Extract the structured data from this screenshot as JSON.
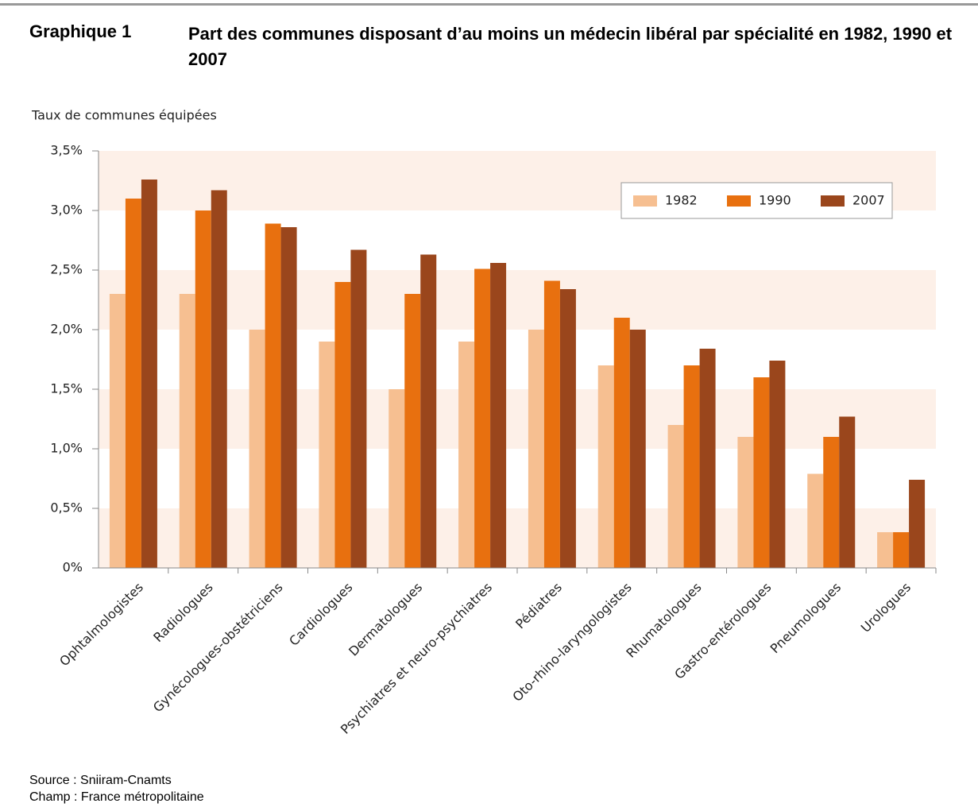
{
  "header": "Graphique 1",
  "chart_data": {
    "type": "bar",
    "title": "Part des communes disposant d’au moins un médecin libéral par spécialité en 1982, 1990 et 2007",
    "y_label": "Taux de communes équipées",
    "categories": [
      "Ophtalmologistes",
      "Radiologues",
      "Gynécologues-obstétriciens",
      "Cardiologues",
      "Dermatologues",
      "Psychiatres et neuro-psychiatres",
      "Pédiatres",
      "Oto-rhino-laryngologistes",
      "Rhumatologues",
      "Gastro-entérologues",
      "Pneumologues",
      "Urologues"
    ],
    "series": [
      {
        "name": "1982",
        "color": "#f6bf91",
        "values": [
          2.3,
          2.3,
          2.0,
          1.9,
          1.5,
          1.9,
          2.0,
          1.7,
          1.2,
          1.1,
          0.79,
          0.3
        ]
      },
      {
        "name": "1990",
        "color": "#e8700f",
        "values": [
          3.1,
          3.0,
          2.89,
          2.4,
          2.3,
          2.51,
          2.41,
          2.1,
          1.7,
          1.6,
          1.1,
          0.3
        ]
      },
      {
        "name": "2007",
        "color": "#9a461c",
        "values": [
          3.26,
          3.17,
          2.86,
          2.67,
          2.63,
          2.56,
          2.34,
          2.0,
          1.84,
          1.74,
          1.27,
          0.74
        ]
      }
    ],
    "ylim": [
      0,
      3.5
    ],
    "yticks": [
      {
        "value": 0,
        "label": "0%"
      },
      {
        "value": 0.5,
        "label": "0,5%"
      },
      {
        "value": 1,
        "label": "1,0%"
      },
      {
        "value": 1.5,
        "label": "1,5%"
      },
      {
        "value": 2,
        "label": "2,0%"
      },
      {
        "value": 2.5,
        "label": "2,5%"
      },
      {
        "value": 3,
        "label": "3,0%"
      },
      {
        "value": 3.5,
        "label": "3,5%"
      }
    ],
    "legend": "upper right"
  },
  "source": "Source : Sniiram-Cnamts",
  "champ": "Champ : France métropolitaine"
}
